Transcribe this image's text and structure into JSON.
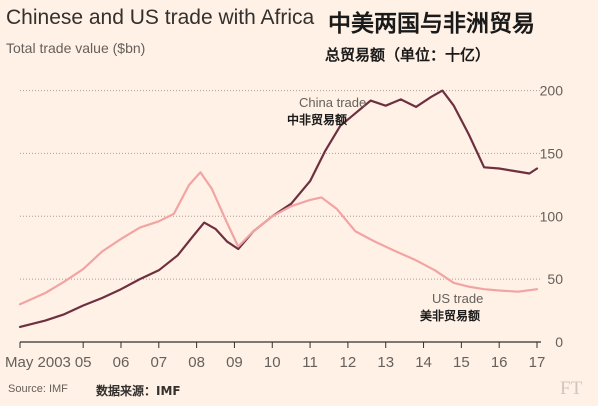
{
  "title_en": "Chinese and US trade with Africa",
  "title_zh": "中美两国与非洲贸易",
  "subtitle_en": "Total trade value ($bn)",
  "subtitle_zh": "总贸易额（单位：十亿）",
  "source_en": "Source: IMF",
  "source_zh": "数据来源：IMF",
  "logo": "FT",
  "colors": {
    "background": "#fff1e5",
    "china": "#6e3041",
    "us": "#f2a4a4",
    "grid": "#a79f98",
    "axis": "#33302e",
    "tick_text": "#66605c"
  },
  "chart_data": {
    "type": "line",
    "title": "Chinese and US trade with Africa",
    "subtitle": "Total trade value ($bn)",
    "ylim": [
      0,
      210
    ],
    "xlim": [
      2003.33,
      2017.0
    ],
    "y_ticks": [
      0,
      50,
      100,
      150,
      200
    ],
    "x_tick_labels": [
      {
        "x": 2003.33,
        "label": "May 2003"
      },
      {
        "x": 2005,
        "label": "05"
      },
      {
        "x": 2006,
        "label": "06"
      },
      {
        "x": 2007,
        "label": "07"
      },
      {
        "x": 2008,
        "label": "08"
      },
      {
        "x": 2009,
        "label": "09"
      },
      {
        "x": 2010,
        "label": "10"
      },
      {
        "x": 2011,
        "label": "11"
      },
      {
        "x": 2012,
        "label": "12"
      },
      {
        "x": 2013,
        "label": "13"
      },
      {
        "x": 2014,
        "label": "14"
      },
      {
        "x": 2015,
        "label": "15"
      },
      {
        "x": 2016,
        "label": "16"
      },
      {
        "x": 2017,
        "label": "17"
      }
    ],
    "grid": true,
    "y_axis_side": "right",
    "series": [
      {
        "name": "China trade",
        "label_zh": "中非贸易额",
        "color": "#6e3041",
        "points": [
          [
            2003.33,
            12
          ],
          [
            2004.0,
            17
          ],
          [
            2004.5,
            22
          ],
          [
            2005.0,
            29
          ],
          [
            2005.5,
            35
          ],
          [
            2006.0,
            42
          ],
          [
            2006.5,
            50
          ],
          [
            2007.0,
            57
          ],
          [
            2007.5,
            69
          ],
          [
            2007.9,
            84
          ],
          [
            2008.2,
            95
          ],
          [
            2008.5,
            90
          ],
          [
            2008.8,
            80
          ],
          [
            2009.1,
            74
          ],
          [
            2009.5,
            88
          ],
          [
            2010.0,
            100
          ],
          [
            2010.5,
            110
          ],
          [
            2011.0,
            128
          ],
          [
            2011.4,
            152
          ],
          [
            2011.8,
            172
          ],
          [
            2012.2,
            182
          ],
          [
            2012.6,
            192
          ],
          [
            2013.0,
            188
          ],
          [
            2013.4,
            193
          ],
          [
            2013.8,
            187
          ],
          [
            2014.2,
            195
          ],
          [
            2014.5,
            200
          ],
          [
            2014.8,
            188
          ],
          [
            2015.2,
            165
          ],
          [
            2015.6,
            139
          ],
          [
            2016.0,
            138
          ],
          [
            2016.4,
            136
          ],
          [
            2016.8,
            134
          ],
          [
            2017.0,
            138
          ]
        ]
      },
      {
        "name": "US trade",
        "label_zh": "美非贸易额",
        "color": "#f2a4a4",
        "points": [
          [
            2003.33,
            30
          ],
          [
            2004.0,
            39
          ],
          [
            2004.5,
            48
          ],
          [
            2005.0,
            58
          ],
          [
            2005.5,
            72
          ],
          [
            2006.0,
            82
          ],
          [
            2006.5,
            91
          ],
          [
            2007.0,
            96
          ],
          [
            2007.4,
            102
          ],
          [
            2007.8,
            125
          ],
          [
            2008.1,
            135
          ],
          [
            2008.4,
            122
          ],
          [
            2008.8,
            95
          ],
          [
            2009.1,
            76
          ],
          [
            2009.5,
            88
          ],
          [
            2010.0,
            100
          ],
          [
            2010.5,
            108
          ],
          [
            2011.0,
            113
          ],
          [
            2011.3,
            115
          ],
          [
            2011.7,
            106
          ],
          [
            2012.2,
            88
          ],
          [
            2012.7,
            80
          ],
          [
            2013.2,
            73
          ],
          [
            2013.8,
            65
          ],
          [
            2014.3,
            57
          ],
          [
            2014.8,
            47
          ],
          [
            2015.2,
            44
          ],
          [
            2015.6,
            42
          ],
          [
            2016.0,
            41
          ],
          [
            2016.5,
            40
          ],
          [
            2017.0,
            42
          ]
        ]
      }
    ]
  }
}
